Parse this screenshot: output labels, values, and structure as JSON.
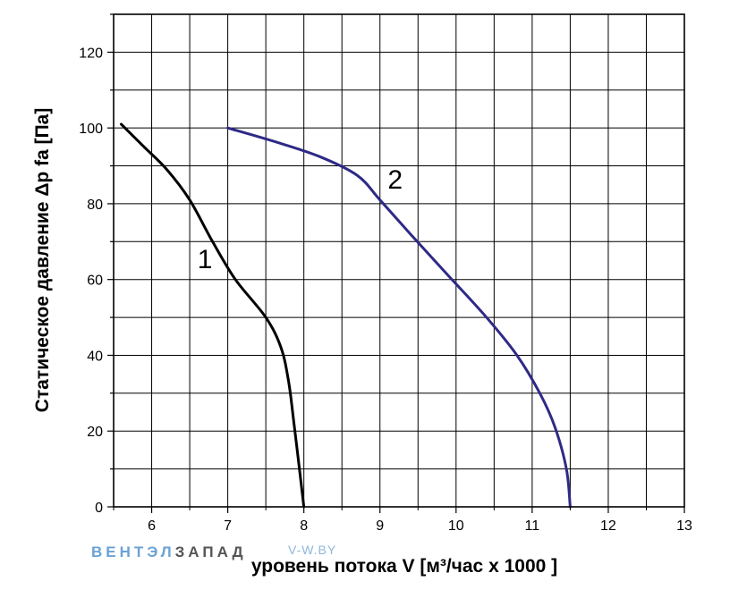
{
  "chart_data": {
    "type": "line",
    "title": "",
    "xlabel": "уровень потока  V [м³/час х 1000 ]",
    "ylabel": "Статическое давление  Δp fa [Па]",
    "xlim": [
      5.5,
      13
    ],
    "ylim": [
      0,
      130
    ],
    "x_ticks": [
      6,
      7,
      8,
      9,
      10,
      11,
      12,
      13
    ],
    "y_ticks": [
      0,
      20,
      40,
      60,
      80,
      100,
      120
    ],
    "x_grid_step": 0.5,
    "y_grid_step": 10,
    "grid": true,
    "series": [
      {
        "name": "1",
        "color": "#000000",
        "points": [
          [
            5.6,
            101
          ],
          [
            5.9,
            95
          ],
          [
            6.2,
            89
          ],
          [
            6.5,
            81
          ],
          [
            6.8,
            70
          ],
          [
            7.1,
            60
          ],
          [
            7.5,
            50
          ],
          [
            7.7,
            42
          ],
          [
            7.8,
            33
          ],
          [
            7.87,
            22
          ],
          [
            7.93,
            12
          ],
          [
            8.0,
            0
          ]
        ]
      },
      {
        "name": "2",
        "color": "#2e2a86",
        "points": [
          [
            7.0,
            100
          ],
          [
            7.6,
            96.5
          ],
          [
            8.2,
            92.5
          ],
          [
            8.7,
            87.5
          ],
          [
            9.0,
            81
          ],
          [
            9.4,
            72
          ],
          [
            9.9,
            61
          ],
          [
            10.4,
            50
          ],
          [
            10.8,
            40
          ],
          [
            11.1,
            30
          ],
          [
            11.3,
            21
          ],
          [
            11.45,
            10
          ],
          [
            11.5,
            0
          ]
        ]
      }
    ],
    "curve_labels": [
      {
        "text": "1",
        "x": 6.7,
        "y": 63
      },
      {
        "text": "2",
        "x": 9.2,
        "y": 84
      }
    ]
  },
  "watermark": {
    "part1": "ВЕНТЭЛ",
    "part2": "ЗАПАД",
    "site": "V-W.BY",
    "color1": "#6aa2d4",
    "color2": "#555555",
    "color_site": "#8fb7dd"
  }
}
